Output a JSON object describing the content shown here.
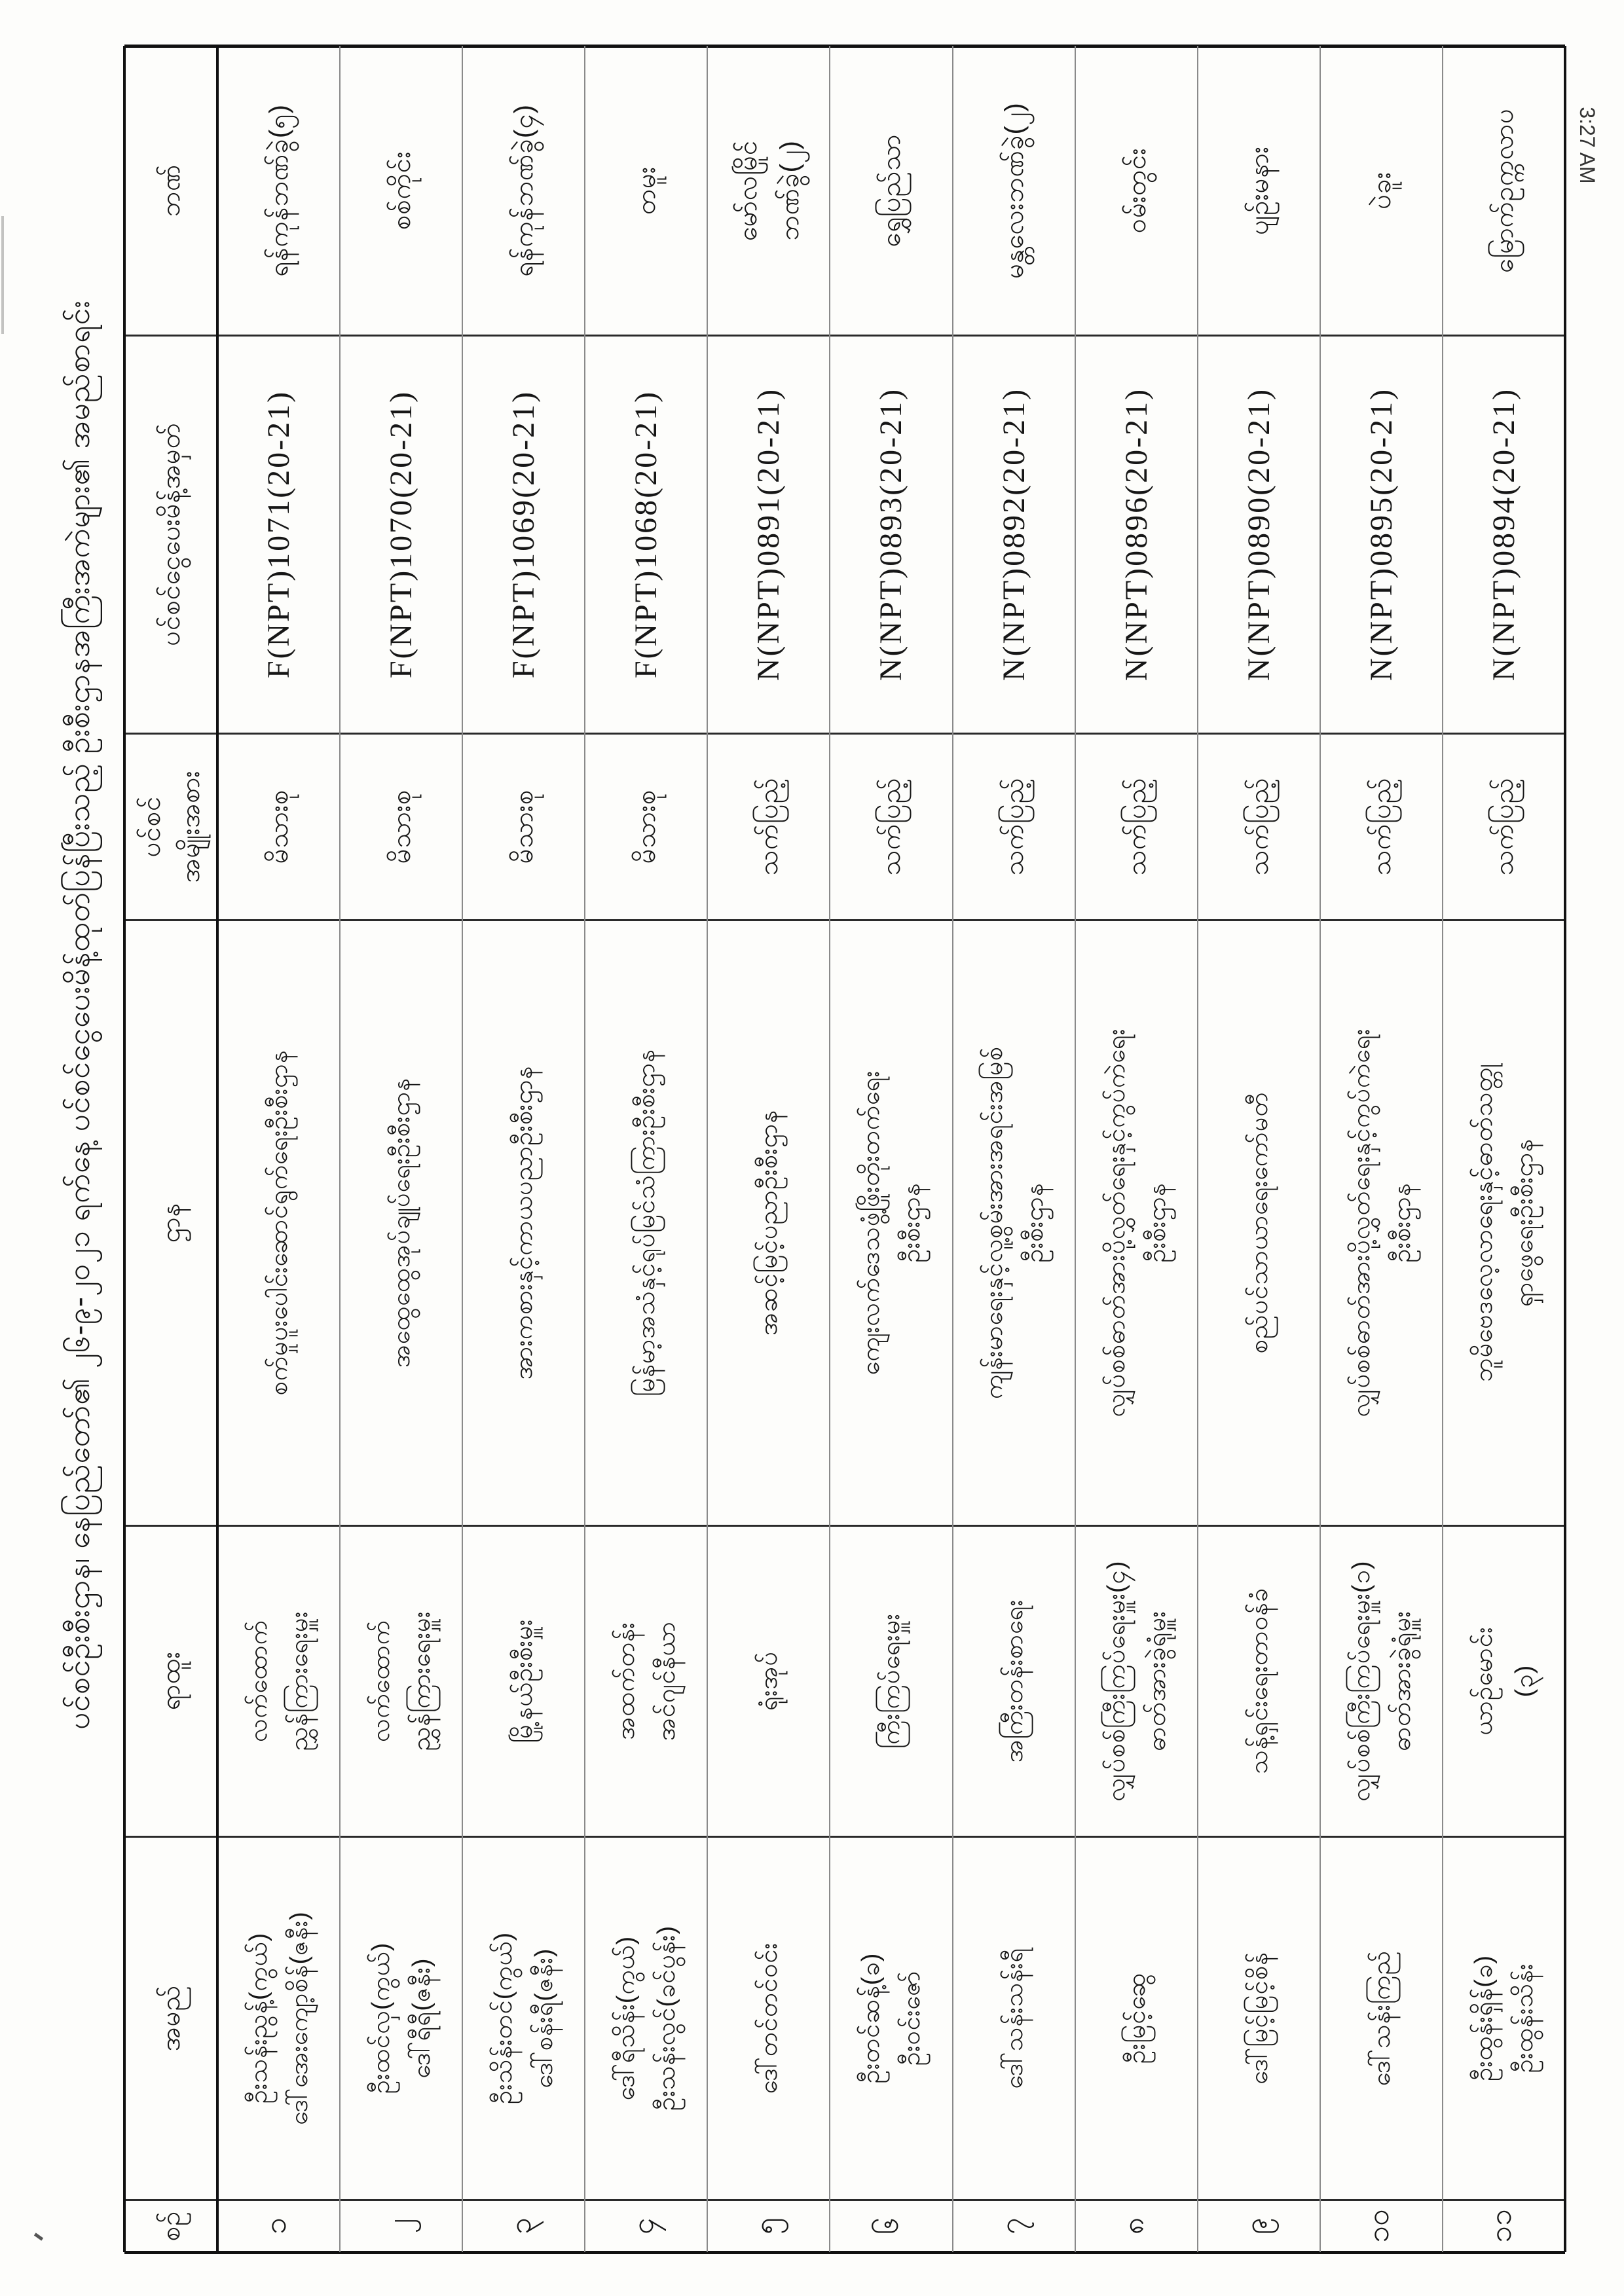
{
  "page": {
    "timestamp": "3:27 AM",
    "title": "ပင်စင်ဦးစီးဌာန၊ နေပြည်တော်၏ ၂၆-၉-၂၀၂၁ ရက်နေ့ ပင်စင်ငွေပေးမိန့်ထုတ်ပြန်ပြီးသည့် ဦးစီးဌာနအကြီးအကဲများ၏ အမည်စာရင်း"
  },
  "table": {
    "headers": {
      "serial": "စဉ်",
      "name": "အမည်",
      "position": "ရာထူး",
      "department": "ဌာန",
      "pension_type_lines": [
        "ပင်စင်",
        "အမျိုးအစား"
      ],
      "pay_order_no": "ပင်စင်ငွေပေးမိန့်အမှတ်",
      "bank": "ဘဏ်"
    },
    "rows": [
      {
        "serial": "၁",
        "name_lines": [
          "ဦးသန်းညွန့်(ကွယ်)",
          "ဒေါ်အေးကျော့စိန်(ဇနီး)"
        ],
        "position_lines": [
          "လက်ထောက်",
          "ညွှန်ကြားရေးမှူး"
        ],
        "dept_lines": [
          "စက်မှုပူးပေါင်းဆောင်ရွက်ရေးဦးစီးဌာန"
        ],
        "pension_type": "မိသားစု",
        "pay_order_no": "F(NPT)1071(20-21)",
        "bank_lines": [
          "ရန်ကုန်ဘဏ်ခွဲ(၅)"
        ]
      },
      {
        "serial": "၂",
        "name_lines": [
          "ဦးထင်လှ(ကွယ်)",
          "ဒေါ်ရီရီ(ဇနီး)"
        ],
        "position_lines": [
          "လက်ထောက်",
          "ညွှန်ကြားရေးမှူး"
        ],
        "dept_lines": [
          "အထွေထွေအုပ်ချုပ်ရေးဦးစီးဌာန"
        ],
        "pension_type": "မိသားစု",
        "pay_order_no": "F(NPT)1070(20-21)",
        "bank_lines": [
          "စစ်ကိုင်း"
        ]
      },
      {
        "serial": "၃",
        "name_lines": [
          "ဦးသိန်းတင်(ကွယ်)",
          "ဒေါ်စန်းရီ(ဇနီး)"
        ],
        "position_lines": [
          "မြို့နယ်ဦးစီးမှူး"
        ],
        "dept_lines": [
          "အားကစားနှင့်ကာယပညာဦးစီးဌာန"
        ],
        "pension_type": "မိသားစု",
        "pay_order_no": "F(NPT)1069(20-21)",
        "bank_lines": [
          "ရန်ကုန်ဘဏ်ခွဲ(၄)"
        ]
      },
      {
        "serial": "၄",
        "name_lines": [
          "ဒေါ်ရီသိန်း(ကွယ်)",
          "ဦးသန်းလွင်(ခင်ပွန်း)"
        ],
        "position_lines": [
          "အထက်တန်း",
          "အင်ဂျင်နီယာ"
        ],
        "dept_lines": [
          "မြန်မာ့အသံနှင့်ရုပ်မြင်သံကြားဦးစီးဌာန"
        ],
        "pension_type": "မိသားစု",
        "pay_order_no": "F(NPT)1068(20-21)",
        "bank_lines": [
          "တမူး"
        ]
      },
      {
        "serial": "၅",
        "name_lines": [
          "ဒေါ်တင်တင်ဝင်း"
        ],
        "position_lines": [
          "ရုံးအုပ်"
        ],
        "dept_lines": [
          "အဆင့်မြင့်ပညာဦးစီးဌာန"
        ],
        "pension_type": "သက်ပြည့်",
        "pay_order_no": "N(NPT)0891(20-21)",
        "bank_lines": [
          "မော်လမြိုင်",
          "ဘဏ်ခွဲ(၂)"
        ]
      },
      {
        "serial": "၆",
        "name_lines": [
          "ဦးတင်ဆန့်(ခ)",
          "ဦးဝင်းဇော်"
        ],
        "position_lines": [
          "ကြီးကြပ်ရေးမှူး"
        ],
        "dept_lines": [
          "ကျေးလက်ဒေသဖွံ့ဖြိုးတိုးတက်ရေး",
          "ဦးစီးဌာန"
        ],
        "pension_type": "သက်ပြည့်",
        "pay_order_no": "N(NPT)0893(20-21)",
        "bank_lines": [
          "ရွှေပြည်သာ"
        ]
      },
      {
        "serial": "၇",
        "name_lines": [
          "ဒေါ်သန်းသန်းရီ"
        ],
        "position_lines": [
          "အကြီးတန်းစာရေး"
        ],
        "dept_lines": [
          "ကျန်းမာရေးနှင့်လူ့စွမ်းအားအရင်းအမြစ်",
          "ဦးစီးဌာန"
        ],
        "pension_type": "သက်ပြည့်",
        "pay_order_no": "N(NPT)0892(20-21)",
        "bank_lines": [
          "မန္တလေးဘဏ်ခွဲ(၂)"
        ]
      },
      {
        "serial": "၈",
        "name_lines": [
          "ဦးမြင့်ဆွေ"
        ],
        "position_lines": [
          "လျှပ်စစ်ကြီးကြပ်ရေးမှူး(၄)",
          "ဓာတ်အားခွဲရုံမှူး"
        ],
        "dept_lines": [
          "လျှပ်စစ်ဓာတ်အားပို့လွှတ်ရေးနှင့်ကွပ်ကဲရေး",
          "ဦးစီးဌာန"
        ],
        "pension_type": "သက်ပြည့်",
        "pay_order_no": "N(NPT)0896(20-21)",
        "bank_lines": [
          "ဝမ်းတွင်း"
        ]
      },
      {
        "serial": "၉",
        "name_lines": [
          "ဒေါ်မြင့်မြင့်စိန်"
        ],
        "position_lines": [
          "သန့်ရှင်းရေးတာဝန်ခံ"
        ],
        "dept_lines": [
          "စည်ပင်သာယာရေးကော်မတီ"
        ],
        "pension_type": "သက်ပြည့်",
        "pay_order_no": "N(NPT)0890(20-21)",
        "bank_lines": [
          "ပျဉ်းမနား"
        ]
      },
      {
        "serial": "၁၀",
        "name_lines": [
          "ဒေါ်သန်းကြည်"
        ],
        "position_lines": [
          "လျှပ်စစ်ကြီးကြပ်ရေးမှူး(၁)",
          "ဓာတ်အားခွဲရုံမှူး"
        ],
        "dept_lines": [
          "လျှပ်စစ်ဓာတ်အားပို့လွှတ်ရေးနှင့်ကွပ်ကဲရေး",
          "ဦးစီးဌာန"
        ],
        "pension_type": "သက်ပြည့်",
        "pay_order_no": "N(NPT)0895(20-21)",
        "bank_lines": [
          "ပဲခူး"
        ]
      },
      {
        "serial": "၁၁",
        "name_lines": [
          "ဦးထွန်းရှိန်(ခ)",
          "ဦးထွန်းသိန်း"
        ],
        "position_lines": [
          "ယာဉ်မောင်း",
          "(၃)"
        ],
        "dept_lines": [
          "ဘူမိဗေဒလေ့လာရေးနှင့်ဓာတ်သတ္တု",
          "ရှာဖွေရေးဦးစီးဌာန"
        ],
        "pension_type": "သက်ပြည့်",
        "pay_order_no": "N(NPT)0894(20-21)",
        "bank_lines": [
          "မြောက်ဥက္ကလာပ"
        ]
      }
    ]
  }
}
